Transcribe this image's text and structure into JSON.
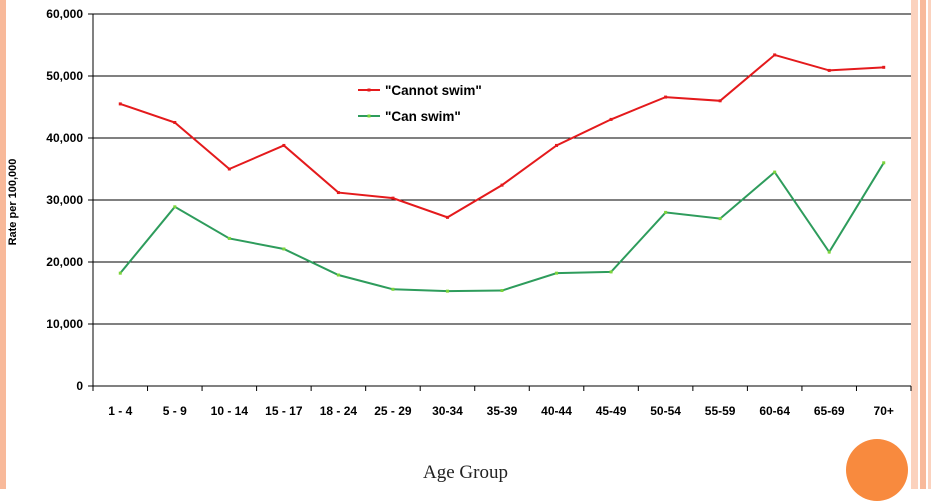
{
  "colors": {
    "frame_accent": "#f8b99a",
    "frame_accent_light": "#fbd2be",
    "circle": "#f88a3e",
    "series_cannot": "#e41a1c",
    "series_can": "#2e9c5c",
    "marker_can": "#7cd43a",
    "gridline": "#000000"
  },
  "chart_data": {
    "type": "line",
    "title": "",
    "xlabel": "Age Group",
    "ylabel": "Rate per 100,000",
    "ylim": [
      0,
      60000
    ],
    "yticks": [
      "0",
      "10,000",
      "20,000",
      "30,000",
      "40,000",
      "50,000",
      "60,000"
    ],
    "categories": [
      "1 - 4",
      "5 - 9",
      "10 - 14",
      "15 - 17",
      "18 - 24",
      "25 - 29",
      "30-34",
      "35-39",
      "40-44",
      "45-49",
      "50-54",
      "55-59",
      "60-64",
      "65-69",
      "70+"
    ],
    "grid": true,
    "legend_position": "top-center",
    "series": [
      {
        "name": "\"Cannot swim\"",
        "values": [
          45500,
          42500,
          35000,
          38800,
          31200,
          30300,
          27200,
          32400,
          38800,
          43000,
          46600,
          46000,
          53400,
          50900,
          51400
        ]
      },
      {
        "name": "\"Can swim\"",
        "values": [
          18200,
          28900,
          23800,
          22100,
          17900,
          15600,
          15300,
          15400,
          18200,
          18400,
          28000,
          27000,
          34500,
          21600,
          36000
        ]
      }
    ]
  }
}
